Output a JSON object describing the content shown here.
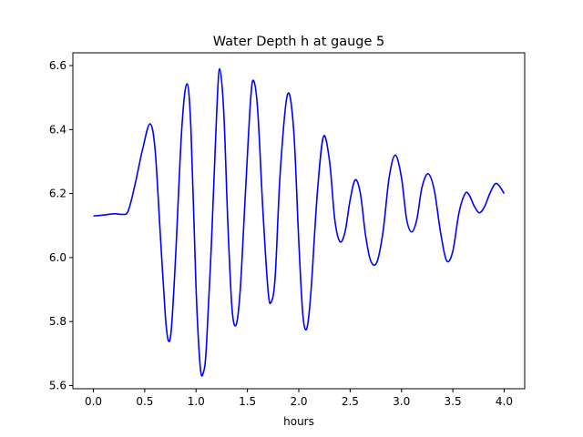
{
  "chart_data": {
    "type": "line",
    "title": "Water Depth h at gauge 5",
    "xlabel": "hours",
    "ylabel": "",
    "xlim": [
      -0.2,
      4.2
    ],
    "ylim": [
      5.59,
      6.64
    ],
    "xticks": [
      0.0,
      0.5,
      1.0,
      1.5,
      2.0,
      2.5,
      3.0,
      3.5,
      4.0
    ],
    "xtick_labels": [
      "0.0",
      "0.5",
      "1.0",
      "1.5",
      "2.0",
      "2.5",
      "3.0",
      "3.5",
      "4.0"
    ],
    "yticks": [
      5.6,
      5.8,
      6.0,
      6.2,
      6.4,
      6.6
    ],
    "ytick_labels": [
      "5.6",
      "5.8",
      "6.0",
      "6.2",
      "6.4",
      "6.6"
    ],
    "grid": false,
    "legend": "none",
    "series": [
      {
        "color": "#0000ff",
        "x": [
          0.0,
          0.1,
          0.2,
          0.28,
          0.33,
          0.37,
          0.42,
          0.48,
          0.55,
          0.6,
          0.65,
          0.7,
          0.73,
          0.76,
          0.8,
          0.86,
          0.91,
          0.95,
          1.0,
          1.04,
          1.07,
          1.1,
          1.15,
          1.2,
          1.23,
          1.27,
          1.31,
          1.35,
          1.39,
          1.43,
          1.48,
          1.53,
          1.56,
          1.6,
          1.65,
          1.7,
          1.73,
          1.77,
          1.82,
          1.89,
          1.95,
          2.0,
          2.04,
          2.08,
          2.12,
          2.18,
          2.24,
          2.3,
          2.35,
          2.4,
          2.45,
          2.5,
          2.55,
          2.6,
          2.65,
          2.7,
          2.76,
          2.82,
          2.88,
          2.94,
          3.0,
          3.05,
          3.1,
          3.15,
          3.2,
          3.26,
          3.32,
          3.38,
          3.44,
          3.5,
          3.56,
          3.62,
          3.66,
          3.71,
          3.76,
          3.81,
          3.86,
          3.91,
          3.95,
          4.0
        ],
        "y": [
          6.13,
          6.133,
          6.137,
          6.135,
          6.14,
          6.18,
          6.25,
          6.34,
          6.418,
          6.34,
          6.08,
          5.82,
          5.74,
          5.78,
          6.0,
          6.4,
          6.543,
          6.4,
          5.9,
          5.66,
          5.64,
          5.72,
          6.05,
          6.45,
          6.59,
          6.45,
          6.1,
          5.84,
          5.79,
          5.9,
          6.2,
          6.49,
          6.553,
          6.46,
          6.15,
          5.9,
          5.86,
          5.94,
          6.27,
          6.51,
          6.4,
          6.05,
          5.82,
          5.78,
          5.9,
          6.2,
          6.378,
          6.3,
          6.12,
          6.05,
          6.08,
          6.18,
          6.243,
          6.2,
          6.07,
          5.99,
          5.985,
          6.08,
          6.25,
          6.32,
          6.25,
          6.12,
          6.08,
          6.12,
          6.22,
          6.262,
          6.21,
          6.08,
          5.99,
          6.02,
          6.14,
          6.2,
          6.195,
          6.16,
          6.14,
          6.16,
          6.2,
          6.23,
          6.225,
          6.2
        ]
      }
    ]
  }
}
